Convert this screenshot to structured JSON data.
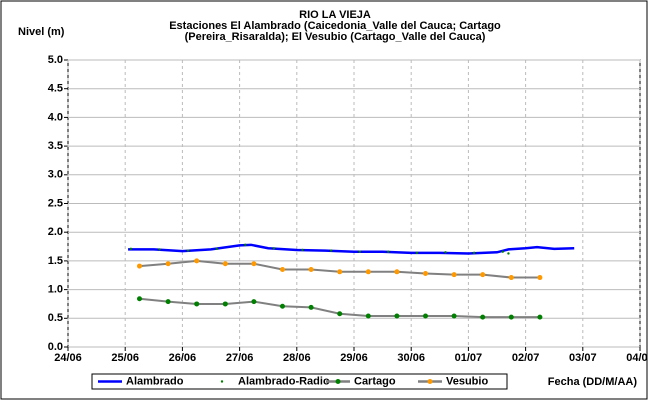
{
  "chart_data": {
    "type": "line",
    "title": [
      "RIO LA VIEJA",
      "Estaciones El Alambrado (Caicedonia_Valle del Cauca; Cartago",
      "(Pereira_Risaralda);  El Vesubio (Cartago_Valle del Cauca)"
    ],
    "y_label": "Nivel (m)",
    "x_label": "Fecha (DD/M/AA)",
    "xlim": [
      0,
      10
    ],
    "xticks": [
      {
        "value": 0,
        "label": "24/06"
      },
      {
        "value": 1,
        "label": "25/06"
      },
      {
        "value": 2,
        "label": "26/06"
      },
      {
        "value": 3,
        "label": "27/06"
      },
      {
        "value": 4,
        "label": "28/06"
      },
      {
        "value": 5,
        "label": "29/06"
      },
      {
        "value": 6,
        "label": "30/06"
      },
      {
        "value": 7,
        "label": "01/07"
      },
      {
        "value": 8,
        "label": "02/07"
      },
      {
        "value": 9,
        "label": "03/07"
      },
      {
        "value": 10,
        "label": "04/07"
      }
    ],
    "ylim": [
      0,
      5
    ],
    "yticks": [
      {
        "value": 0,
        "label": "0.0"
      },
      {
        "value": 0.5,
        "label": "0.5"
      },
      {
        "value": 1,
        "label": "1.0"
      },
      {
        "value": 1.5,
        "label": "1.5"
      },
      {
        "value": 2,
        "label": "2.0"
      },
      {
        "value": 2.5,
        "label": "2.5"
      },
      {
        "value": 3,
        "label": "3.0"
      },
      {
        "value": 3.5,
        "label": "3.5"
      },
      {
        "value": 4,
        "label": "4.0"
      },
      {
        "value": 4.5,
        "label": "4.5"
      },
      {
        "value": 5,
        "label": "5.0"
      }
    ],
    "grid": true,
    "series": [
      {
        "name": "Alambrado",
        "color": "#0000ff",
        "line": true,
        "x": [
          1.05,
          1.5,
          2.0,
          2.5,
          3.0,
          3.2,
          3.5,
          4.0,
          4.5,
          5.0,
          5.5,
          6.0,
          6.5,
          7.0,
          7.5,
          7.7,
          8.0,
          8.2,
          8.5,
          8.85
        ],
        "values": [
          1.7,
          1.7,
          1.67,
          1.7,
          1.77,
          1.78,
          1.72,
          1.69,
          1.68,
          1.66,
          1.66,
          1.64,
          1.64,
          1.63,
          1.65,
          1.7,
          1.72,
          1.74,
          1.71,
          1.72
        ]
      },
      {
        "name": "Alambrado-Radio",
        "color": "#008000",
        "line": false,
        "marker_color": "#008000",
        "x": [
          1.1,
          1.6,
          2.1,
          2.6,
          3.1,
          3.6,
          4.1,
          4.6,
          5.1,
          5.6,
          6.1,
          6.6,
          7.1,
          7.6,
          7.7
        ],
        "values": [
          1.71,
          1.7,
          1.68,
          1.71,
          1.78,
          1.72,
          1.69,
          1.68,
          1.66,
          1.66,
          1.64,
          1.65,
          1.64,
          1.66,
          1.63
        ]
      },
      {
        "name": "Cartago",
        "color": "#808080",
        "line": true,
        "marker_color": "#008000",
        "x": [
          1.25,
          1.75,
          2.25,
          2.75,
          3.25,
          3.75,
          4.25,
          4.75,
          5.25,
          5.75,
          6.25,
          6.75,
          7.25,
          7.75,
          8.25
        ],
        "values": [
          0.84,
          0.79,
          0.75,
          0.75,
          0.79,
          0.71,
          0.69,
          0.58,
          0.54,
          0.54,
          0.54,
          0.54,
          0.52,
          0.52,
          0.52
        ]
      },
      {
        "name": "Vesubio",
        "color": "#808080",
        "line": true,
        "marker_color": "#ff9900",
        "x": [
          1.25,
          1.75,
          2.25,
          2.75,
          3.25,
          3.75,
          4.25,
          4.75,
          5.25,
          5.75,
          6.25,
          6.75,
          7.25,
          7.75,
          8.25
        ],
        "values": [
          1.41,
          1.45,
          1.5,
          1.45,
          1.45,
          1.35,
          1.35,
          1.31,
          1.31,
          1.31,
          1.28,
          1.26,
          1.26,
          1.21,
          1.21
        ]
      }
    ]
  }
}
